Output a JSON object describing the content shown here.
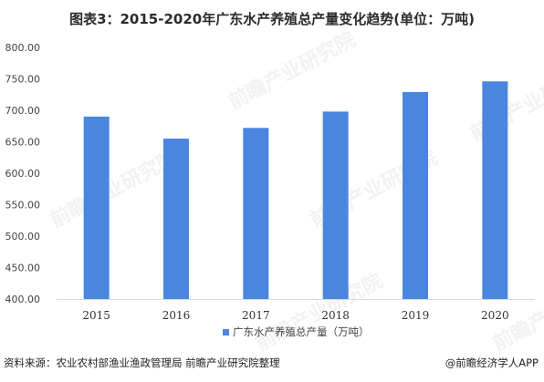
{
  "title": "图表3：2015-2020年广东水产养殖总产量变化趋势(单位：万吨)",
  "footer": {
    "source": "资料来源：农业农村部渔业渔政管理局 前瞻产业研究院整理",
    "brand": "@前瞻经济学人APP"
  },
  "watermark_text": "前瞻产业研究院",
  "colors": {
    "bar": "#4a86e0",
    "axis": "#d9d9d9",
    "text": "#444444"
  },
  "chart_data": {
    "type": "bar",
    "title": "图表3：2015-2020年广东水产养殖总产量变化趋势(单位：万吨)",
    "categories": [
      "2015",
      "2016",
      "2017",
      "2018",
      "2019",
      "2020"
    ],
    "series": [
      {
        "name": "广东水产养殖总产量（万吨）",
        "values": [
          690,
          655,
          672,
          698,
          729,
          746
        ]
      }
    ],
    "y_ticks": [
      "400.00",
      "450.00",
      "500.00",
      "550.00",
      "600.00",
      "650.00",
      "700.00",
      "750.00",
      "800.00"
    ],
    "ylim": [
      400,
      800
    ],
    "xlabel": "",
    "ylabel": "",
    "grid": false,
    "legend_position": "bottom"
  }
}
